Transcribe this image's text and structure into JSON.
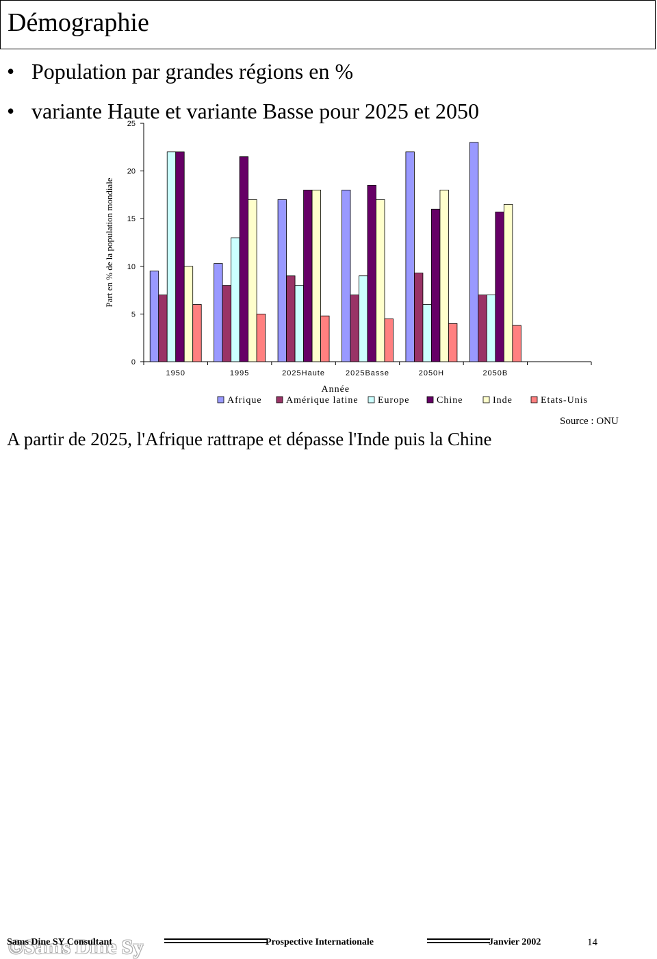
{
  "slide": {
    "title": "Démographie",
    "bullets": [
      "Population par grandes régions en %",
      "variante Haute et variante Basse pour 2025 et 2050"
    ],
    "bullet_symbol": "•",
    "source": "Source : ONU",
    "conclusion": "A partir de 2025, l'Afrique rattrape et dépasse l'Inde puis la Chine"
  },
  "footer": {
    "left": "Sams Dine SY Consultant",
    "watermark": "©Sams Dine Sy",
    "center": "Prospective Internationale",
    "date": "Janvier 2002",
    "page": "14"
  },
  "chart_data": {
    "type": "bar",
    "title": "",
    "xlabel": "Année",
    "ylabel": "Part en % de la population mondiale",
    "ylim": [
      0,
      25
    ],
    "yticks": [
      0,
      5,
      10,
      15,
      20,
      25
    ],
    "categories": [
      "1950",
      "1995",
      "2025Haute",
      "2025Basse",
      "2050H",
      "2050B",
      ""
    ],
    "grid": false,
    "legend_position": "bottom",
    "series": [
      {
        "name": "Afrique",
        "color": "#9999FF",
        "values": [
          9.5,
          10.3,
          17,
          18,
          22,
          23,
          null
        ]
      },
      {
        "name": "Amérique latine",
        "color": "#993366",
        "values": [
          7,
          8,
          9,
          7,
          9.3,
          7,
          null
        ]
      },
      {
        "name": "Europe",
        "color": "#CCFFFF",
        "values": [
          22,
          13,
          8,
          9,
          6,
          7,
          null
        ]
      },
      {
        "name": "Chine",
        "color": "#660066",
        "values": [
          22,
          21.5,
          18,
          18.5,
          16,
          15.7,
          null
        ]
      },
      {
        "name": "Inde",
        "color": "#FFFFCC",
        "values": [
          10,
          17,
          18,
          17,
          18,
          16.5,
          null
        ]
      },
      {
        "name": "Etats-Unis",
        "color": "#FF8080",
        "values": [
          6,
          5,
          4.8,
          4.5,
          4,
          3.8,
          null
        ]
      }
    ]
  }
}
